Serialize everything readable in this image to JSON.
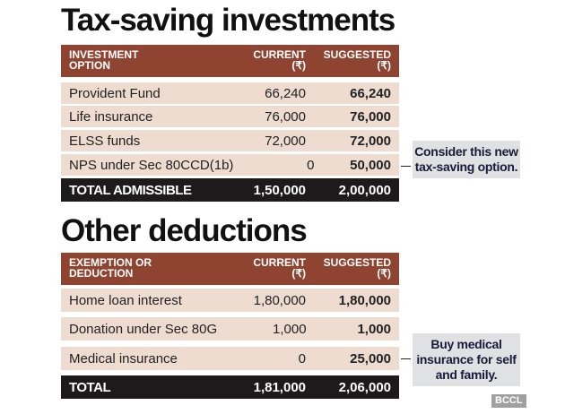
{
  "tables": [
    {
      "title": "Tax-saving investments",
      "headers": [
        "INVESTMENT OPTION",
        "CURRENT (₹)",
        "SUGGESTED (₹)"
      ],
      "rows": [
        [
          "Provident Fund",
          "66,240",
          "66,240"
        ],
        [
          "Life insurance",
          "76,000",
          "76,000"
        ],
        [
          "ELSS funds",
          "72,000",
          "72,000"
        ],
        [
          "NPS under Sec 80CCD(1b)",
          "0",
          "50,000"
        ]
      ],
      "total": [
        "TOTAL ADMISSIBLE",
        "1,50,000",
        "2,00,000"
      ],
      "callout": "Consider this new tax-saving option."
    },
    {
      "title": "Other deductions",
      "headers": [
        "EXEMPTION OR DEDUCTION",
        "CURRENT (₹)",
        "SUGGESTED (₹)"
      ],
      "rows": [
        [
          "Home loan interest",
          "1,80,000",
          "1,80,000"
        ],
        [
          "Donation under Sec 80G",
          "1,000",
          "1,000"
        ],
        [
          "Medical insurance",
          "0",
          "25,000"
        ]
      ],
      "total": [
        "TOTAL",
        "1,81,000",
        "2,06,000"
      ],
      "callout": "Buy medical insurance for self and family."
    }
  ],
  "watermark": "BCCL",
  "colors": {
    "header": "#8e4430",
    "row": "#eedcd0",
    "total": "#1c1a1a",
    "callout": "#e0e1e3"
  }
}
